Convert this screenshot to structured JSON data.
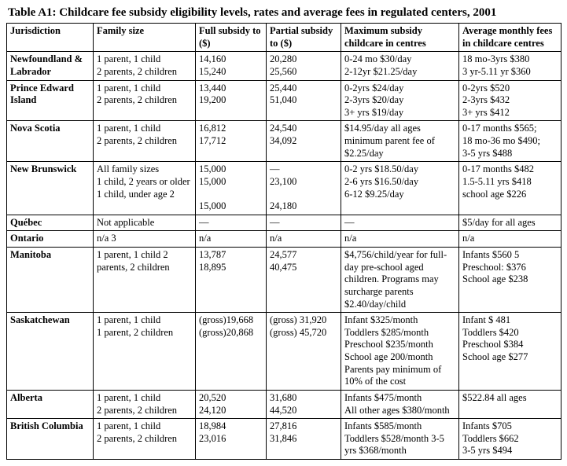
{
  "title": "Table A1: Childcare fee subsidy eligibility levels, rates and average fees in regulated centers, 2001",
  "headers": {
    "jurisdiction": "Jurisdiction",
    "family_size": "Family size",
    "full_subsidy": "Full subsidy to ($)",
    "partial_subsidy": "Partial subsidy to ($)",
    "max_subsidy": "Maximum subsidy childcare in centres",
    "avg_fees": "Average monthly fees in childcare centres"
  },
  "rows": {
    "nl": {
      "jurisdiction": "Newfoundland & Labrador",
      "family_size": "1 parent, 1 child\n2 parents, 2 children",
      "full": "14,160\n15,240",
      "partial": "20,280\n25,560",
      "max": "0-24 mo $30/day\n2-12yr $21.25/day",
      "avg": "18 mo-3yrs $380\n3 yr-5.11 yr $360"
    },
    "pei": {
      "jurisdiction": "Prince Edward Island",
      "family_size": "1 parent, 1 child\n2 parents, 2 children",
      "full": "13,440\n19,200",
      "partial": "25,440\n51,040",
      "max": "0-2yrs $24/day\n2-3yrs $20/day\n3+ yrs $19/day",
      "avg": "0-2yrs $520\n2-3yrs $432\n3+ yrs $412"
    },
    "ns": {
      "jurisdiction": "Nova Scotia",
      "family_size": "1 parent, 1 child\n2 parents, 2 children",
      "full": "16,812\n17,712",
      "partial": "24,540\n34,092",
      "max": "$14.95/day all ages minimum parent fee of $2.25/day",
      "avg": "0-17 months $565;\n18 mo-36 mo $490;\n3-5 yrs $488"
    },
    "nb": {
      "jurisdiction": "New Brunswick",
      "family_size": "All family sizes\n1 child, 2 years or older\n1 child, under age 2",
      "full": "15,000\n15,000\n\n15,000",
      "partial": "—\n23,100\n\n24,180",
      "max": "0-2 yrs $18.50/day\n2-6 yrs $16.50/day\n6-12 $9.25/day",
      "avg": "0-17 months $482\n1.5-5.11 yrs $418\nschool age $226"
    },
    "qc": {
      "jurisdiction": "Québec",
      "family_size": "Not applicable",
      "full": "—",
      "partial": "—",
      "max": "—",
      "avg": "$5/day for all ages"
    },
    "on": {
      "jurisdiction": "Ontario",
      "family_size": "n/a 3",
      "full": "n/a",
      "partial": "n/a",
      "max": "n/a",
      "avg": "n/a"
    },
    "mb": {
      "jurisdiction": "Manitoba",
      "family_size": "1 parent, 1 child 2 parents, 2 children",
      "full": "13,787\n18,895",
      "partial": "24,577\n40,475",
      "max": "$4,756/child/year for full-day pre-school aged children. Programs may surcharge parents $2.40/day/child",
      "avg": "Infants $560 5\nPreschool: $376\nSchool age $238"
    },
    "sk": {
      "jurisdiction": "Saskatchewan",
      "family_size": "1 parent, 1 child\n1 parent, 2 children",
      "full": "(gross)19,668\n(gross)20,868",
      "partial": "(gross) 31,920\n(gross) 45,720",
      "max": "Infant $325/month\nToddlers $285/month\nPreschool $235/month\nSchool age 200/month\nParents pay minimum of 10% of the cost",
      "avg": "Infant $ 481\nToddlers $420\nPreschool $384\nSchool age $277"
    },
    "ab": {
      "jurisdiction": "Alberta",
      "family_size": "1 parent, 1 child\n2 parents, 2 children",
      "full": "20,520\n24,120",
      "partial": "31,680\n44,520",
      "max": "Infants $475/month\nAll other ages $380/month",
      "avg": "$522.84 all ages"
    },
    "bc": {
      "jurisdiction": "British Columbia",
      "family_size": "1 parent, 1 child\n2 parents, 2 children",
      "full": "18,984\n23,016",
      "partial": "27,816\n31,846",
      "max": "Infants $585/month\nToddlers $528/month 3-5 yrs $368/month",
      "avg": "Infants $705\nToddlers $662\n3-5 yrs $494"
    }
  }
}
